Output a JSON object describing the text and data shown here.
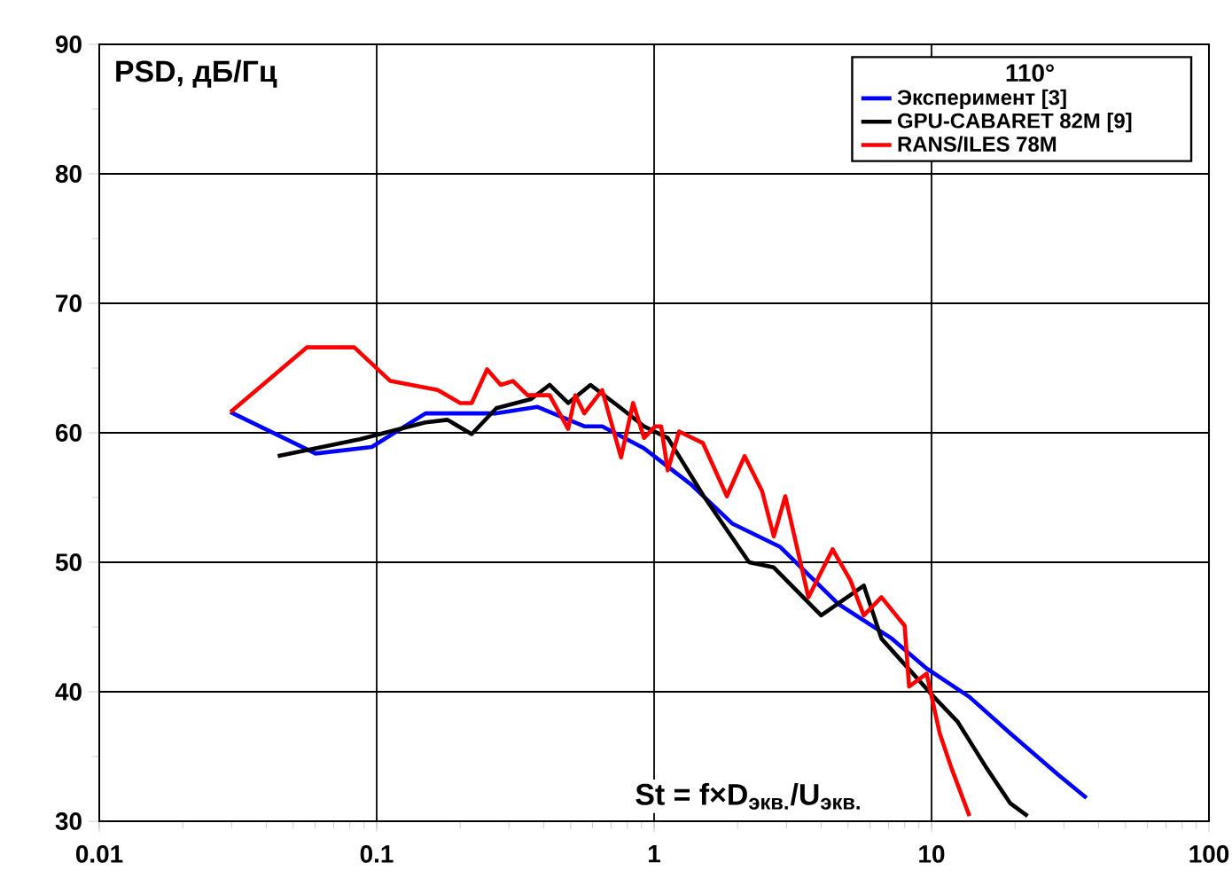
{
  "chart_data": {
    "type": "line",
    "xlabel": "St = f×D$_{экв.}$/U$_{экв.}$",
    "ylabel": "PSD, дБ/Гц",
    "legend_title": "110°",
    "log": "x",
    "grid": true,
    "legend": "top right",
    "line_style": "solid",
    "marker": "none",
    "xlim": [
      0.01,
      100
    ],
    "xticks": [
      0.01,
      0.1,
      1,
      10,
      100
    ],
    "ylim": [
      30,
      90
    ],
    "yticks": [
      30,
      40,
      50,
      60,
      70,
      80,
      90
    ],
    "series": [
      {
        "name": "Эксперимент [3]",
        "color": "#0000ff",
        "x": [
          0.0297,
          0.0602,
          0.096,
          0.15,
          0.27,
          0.38,
          0.56,
          0.65,
          0.92,
          1.36,
          1.91,
          2.84,
          4.6,
          7.2,
          9.6,
          13.7,
          19.2,
          28.6,
          36.2
        ],
        "values": [
          61.6,
          58.4,
          58.9,
          61.5,
          61.5,
          62,
          60.5,
          60.5,
          58.8,
          56,
          53,
          51.2,
          46.8,
          44.1,
          41.8,
          39.6,
          36.8,
          33.6,
          31.8
        ]
      },
      {
        "name": "GPU-CABARET 82M [9]",
        "color": "#000000",
        "x": [
          0.044,
          0.087,
          0.15,
          0.18,
          0.22,
          0.27,
          0.36,
          0.42,
          0.49,
          0.59,
          0.76,
          0.92,
          1.12,
          1.51,
          2.2,
          2.7,
          4.0,
          5.7,
          6.6,
          10.2,
          12.4,
          15.8,
          19.2,
          22.2
        ],
        "values": [
          58.2,
          59.5,
          60.8,
          61,
          59.9,
          61.9,
          62.6,
          63.7,
          62.3,
          63.7,
          61.9,
          60.5,
          59.6,
          55.1,
          50,
          49.6,
          45.9,
          48.2,
          44.1,
          39.6,
          37.7,
          34.1,
          31.4,
          30.4
        ]
      },
      {
        "name": "RANS/ILES 78M",
        "color": "#ff0000",
        "x": [
          0.0297,
          0.056,
          0.083,
          0.112,
          0.166,
          0.2,
          0.22,
          0.25,
          0.28,
          0.31,
          0.35,
          0.42,
          0.49,
          0.52,
          0.56,
          0.65,
          0.76,
          0.84,
          0.92,
          1.01,
          1.06,
          1.12,
          1.23,
          1.5,
          1.83,
          2.12,
          2.45,
          2.7,
          2.97,
          3.6,
          4.4,
          5.1,
          5.7,
          6.6,
          8.0,
          8.3,
          9.6,
          10.7,
          11.8,
          13.7
        ],
        "values": [
          61.6,
          66.6,
          66.6,
          64,
          63.3,
          62.3,
          62.3,
          64.9,
          63.7,
          64,
          62.9,
          62.9,
          60.3,
          62.9,
          61.5,
          63.3,
          58.1,
          62.3,
          59.6,
          60.5,
          60.5,
          57.1,
          60.1,
          59.2,
          55.1,
          58.2,
          55.5,
          52,
          55.1,
          47.3,
          51,
          48.6,
          45.9,
          47.3,
          45.1,
          40.4,
          41.4,
          36.8,
          34.1,
          30.4
        ]
      }
    ]
  }
}
